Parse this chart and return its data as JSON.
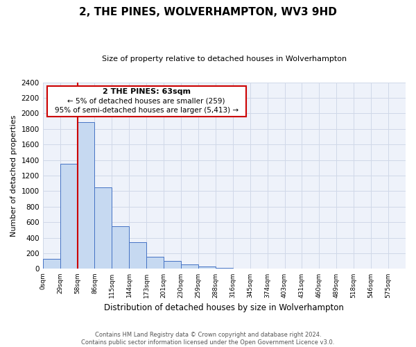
{
  "title": "2, THE PINES, WOLVERHAMPTON, WV3 9HD",
  "subtitle": "Size of property relative to detached houses in Wolverhampton",
  "xlabel": "Distribution of detached houses by size in Wolverhampton",
  "ylabel": "Number of detached properties",
  "bin_labels": [
    "0sqm",
    "29sqm",
    "58sqm",
    "86sqm",
    "115sqm",
    "144sqm",
    "173sqm",
    "201sqm",
    "230sqm",
    "259sqm",
    "288sqm",
    "316sqm",
    "345sqm",
    "374sqm",
    "403sqm",
    "431sqm",
    "460sqm",
    "489sqm",
    "518sqm",
    "546sqm",
    "575sqm"
  ],
  "bar_heights": [
    125,
    1350,
    1890,
    1050,
    550,
    340,
    160,
    105,
    60,
    30,
    10,
    5,
    2,
    1,
    0,
    0,
    0,
    0,
    5,
    0,
    0
  ],
  "bar_color": "#c6d9f1",
  "bar_edge_color": "#4472c4",
  "bar_width": 1.0,
  "vline_x": 2,
  "vline_color": "#cc0000",
  "ylim": [
    0,
    2400
  ],
  "yticks": [
    0,
    200,
    400,
    600,
    800,
    1000,
    1200,
    1400,
    1600,
    1800,
    2000,
    2200,
    2400
  ],
  "annotation_title": "2 THE PINES: 63sqm",
  "annotation_line1": "← 5% of detached houses are smaller (259)",
  "annotation_line2": "95% of semi-detached houses are larger (5,413) →",
  "footer_line1": "Contains HM Land Registry data © Crown copyright and database right 2024.",
  "footer_line2": "Contains public sector information licensed under the Open Government Licence v3.0.",
  "bg_color": "#eef2fa",
  "grid_color": "#d0d8e8",
  "title_fontsize": 11,
  "subtitle_fontsize": 8,
  "ylabel_fontsize": 8,
  "xlabel_fontsize": 8.5
}
